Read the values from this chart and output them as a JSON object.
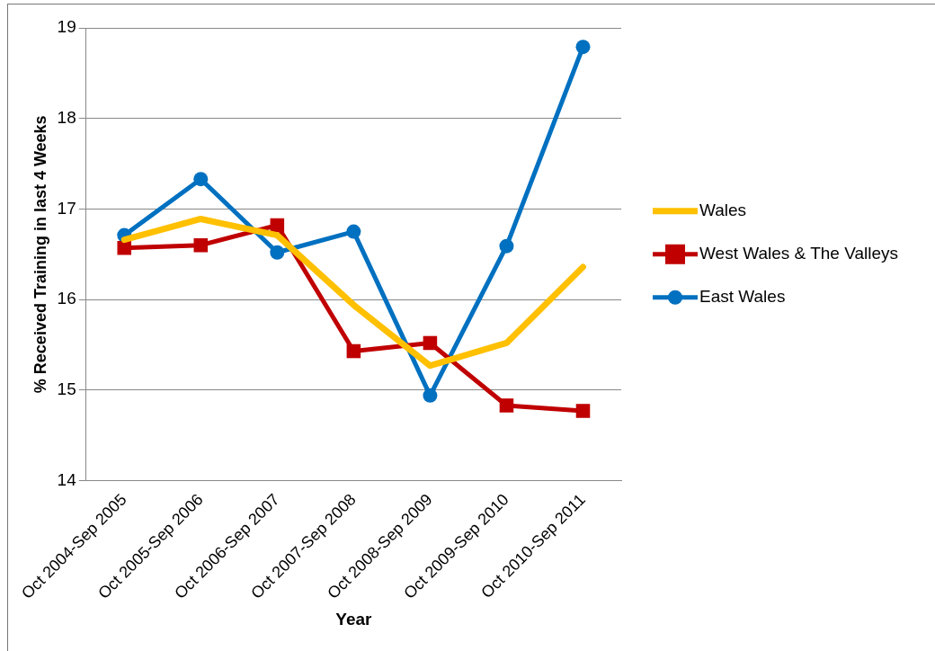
{
  "chart_data": {
    "type": "line",
    "xlabel": "Year",
    "ylabel": "% Received Training in last 4 Weeks",
    "categories": [
      "Oct 2004-Sep 2005",
      "Oct 2005-Sep 2006",
      "Oct 2006-Sep 2007",
      "Oct 2007-Sep 2008",
      "Oct 2008-Sep 2009",
      "Oct 2009-Sep 2010",
      "Oct 2010-Sep 2011"
    ],
    "series": [
      {
        "name": "Wales",
        "color": "#ffc000",
        "marker": "none",
        "values": [
          16.66,
          16.89,
          16.71,
          15.94,
          15.27,
          15.52,
          16.36
        ]
      },
      {
        "name": "West Wales & The Valleys",
        "color": "#c00000",
        "marker": "square",
        "values": [
          16.57,
          16.6,
          16.82,
          15.43,
          15.52,
          14.83,
          14.77
        ]
      },
      {
        "name": "East Wales",
        "color": "#0070c0",
        "marker": "circle",
        "values": [
          16.71,
          17.33,
          16.52,
          16.75,
          14.94,
          16.59,
          18.79
        ]
      }
    ],
    "ylim": [
      14,
      19
    ],
    "yticks": [
      14,
      15,
      16,
      17,
      18,
      19
    ],
    "grid": "y",
    "legend": "right"
  }
}
